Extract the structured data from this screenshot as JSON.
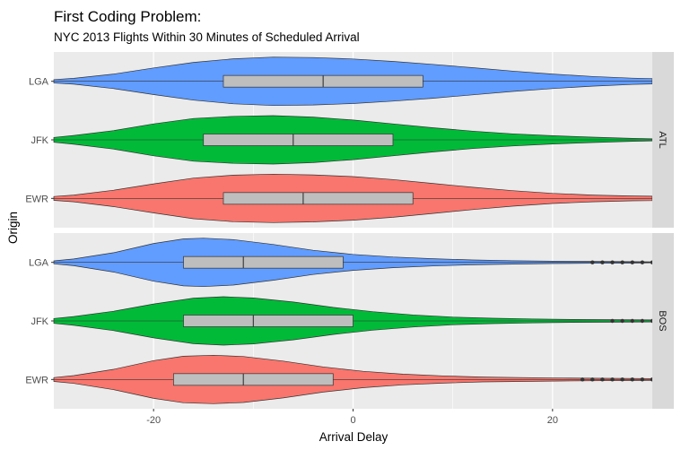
{
  "chart_data": {
    "type": "violin",
    "title": "First Coding Problem:",
    "subtitle": "NYC 2013 Flights Within 30 Minutes of Scheduled Arrival",
    "xlabel": "Arrival Delay",
    "ylabel": "Origin",
    "xlim": [
      -30,
      30
    ],
    "x_ticks": [
      -20,
      0,
      20
    ],
    "x_tick_labels": [
      "-20",
      "0",
      "20"
    ],
    "grid": true,
    "legend": "none",
    "categories": [
      "LGA",
      "JFK",
      "EWR"
    ],
    "colors": {
      "LGA": "#619CFF",
      "JFK": "#00BA38",
      "EWR": "#F8766D"
    },
    "panel_bg": "#EBEBEB",
    "strip_bg": "#D9D9D9",
    "box_fill": "#BEBEBE",
    "facets": [
      {
        "label": "ATL",
        "violins": [
          {
            "origin": "LGA",
            "box": {
              "q1": -13,
              "median": -3,
              "q3": 7
            },
            "density": [
              [
                -30,
                0.07
              ],
              [
                -28,
                0.12
              ],
              [
                -24,
                0.3
              ],
              [
                -20,
                0.55
              ],
              [
                -16,
                0.78
              ],
              [
                -12,
                0.93
              ],
              [
                -8,
                1.0
              ],
              [
                -4,
                0.98
              ],
              [
                0,
                0.92
              ],
              [
                4,
                0.82
              ],
              [
                8,
                0.7
              ],
              [
                12,
                0.56
              ],
              [
                16,
                0.42
              ],
              [
                20,
                0.3
              ],
              [
                24,
                0.2
              ],
              [
                28,
                0.13
              ],
              [
                30,
                0.11
              ]
            ],
            "outliers": []
          },
          {
            "origin": "JFK",
            "box": {
              "q1": -15,
              "median": -6,
              "q3": 4
            },
            "density": [
              [
                -30,
                0.1
              ],
              [
                -28,
                0.18
              ],
              [
                -24,
                0.38
              ],
              [
                -20,
                0.66
              ],
              [
                -16,
                0.88
              ],
              [
                -12,
                0.97
              ],
              [
                -8,
                1.0
              ],
              [
                -4,
                0.94
              ],
              [
                0,
                0.82
              ],
              [
                4,
                0.66
              ],
              [
                8,
                0.5
              ],
              [
                12,
                0.36
              ],
              [
                16,
                0.25
              ],
              [
                20,
                0.17
              ],
              [
                24,
                0.11
              ],
              [
                28,
                0.06
              ],
              [
                30,
                0.04
              ]
            ],
            "outliers": []
          },
          {
            "origin": "EWR",
            "box": {
              "q1": -13,
              "median": -5,
              "q3": 6
            },
            "density": [
              [
                -30,
                0.08
              ],
              [
                -28,
                0.14
              ],
              [
                -24,
                0.34
              ],
              [
                -20,
                0.6
              ],
              [
                -16,
                0.84
              ],
              [
                -12,
                0.96
              ],
              [
                -8,
                1.0
              ],
              [
                -4,
                0.97
              ],
              [
                0,
                0.9
              ],
              [
                4,
                0.78
              ],
              [
                8,
                0.62
              ],
              [
                12,
                0.46
              ],
              [
                16,
                0.32
              ],
              [
                20,
                0.21
              ],
              [
                24,
                0.14
              ],
              [
                28,
                0.1
              ],
              [
                30,
                0.09
              ]
            ],
            "outliers": []
          }
        ]
      },
      {
        "label": "BOS",
        "violins": [
          {
            "origin": "LGA",
            "box": {
              "q1": -17,
              "median": -11,
              "q3": -1
            },
            "density": [
              [
                -30,
                0.06
              ],
              [
                -28,
                0.14
              ],
              [
                -24,
                0.4
              ],
              [
                -20,
                0.78
              ],
              [
                -17,
                0.97
              ],
              [
                -15,
                1.0
              ],
              [
                -12,
                0.94
              ],
              [
                -8,
                0.74
              ],
              [
                -4,
                0.5
              ],
              [
                0,
                0.33
              ],
              [
                4,
                0.22
              ],
              [
                8,
                0.15
              ],
              [
                12,
                0.1
              ],
              [
                16,
                0.07
              ],
              [
                20,
                0.05
              ],
              [
                24,
                0.04
              ],
              [
                28,
                0.03
              ],
              [
                30,
                0.02
              ]
            ],
            "outliers": [
              24,
              25,
              26,
              27,
              28,
              29,
              30
            ]
          },
          {
            "origin": "JFK",
            "box": {
              "q1": -17,
              "median": -10,
              "q3": 0
            },
            "density": [
              [
                -30,
                0.1
              ],
              [
                -28,
                0.18
              ],
              [
                -24,
                0.4
              ],
              [
                -20,
                0.7
              ],
              [
                -16,
                0.94
              ],
              [
                -13,
                1.0
              ],
              [
                -10,
                0.95
              ],
              [
                -6,
                0.78
              ],
              [
                -2,
                0.56
              ],
              [
                2,
                0.38
              ],
              [
                6,
                0.25
              ],
              [
                10,
                0.16
              ],
              [
                14,
                0.11
              ],
              [
                18,
                0.08
              ],
              [
                22,
                0.06
              ],
              [
                26,
                0.05
              ],
              [
                30,
                0.04
              ]
            ],
            "outliers": [
              26,
              27,
              28,
              29,
              30
            ]
          },
          {
            "origin": "EWR",
            "box": {
              "q1": -18,
              "median": -11,
              "q3": -2
            },
            "density": [
              [
                -30,
                0.08
              ],
              [
                -28,
                0.16
              ],
              [
                -24,
                0.42
              ],
              [
                -20,
                0.78
              ],
              [
                -17,
                0.96
              ],
              [
                -14,
                1.0
              ],
              [
                -11,
                0.95
              ],
              [
                -7,
                0.76
              ],
              [
                -3,
                0.52
              ],
              [
                1,
                0.34
              ],
              [
                5,
                0.22
              ],
              [
                9,
                0.15
              ],
              [
                13,
                0.1
              ],
              [
                17,
                0.08
              ],
              [
                21,
                0.06
              ],
              [
                25,
                0.05
              ],
              [
                30,
                0.04
              ]
            ],
            "outliers": [
              23,
              24,
              25,
              26,
              27,
              28,
              29,
              30
            ]
          }
        ]
      }
    ]
  }
}
